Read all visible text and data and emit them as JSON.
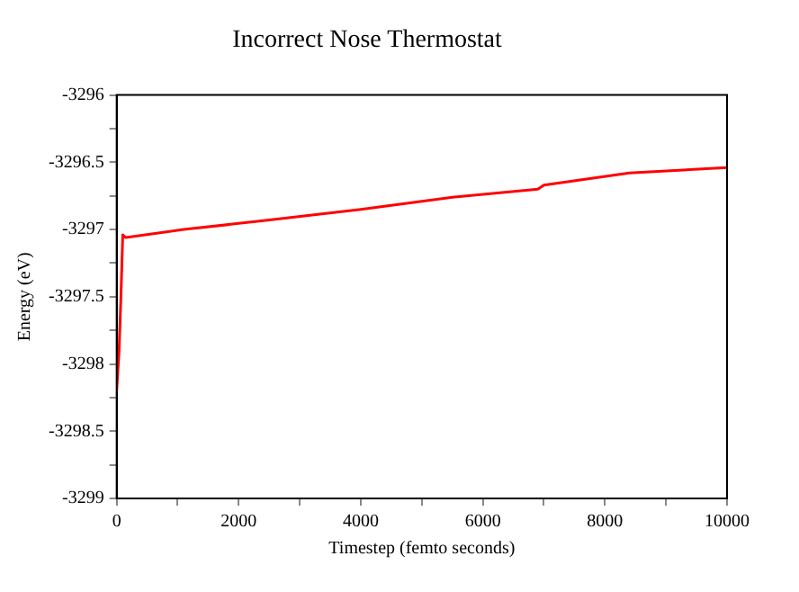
{
  "chart_data": {
    "type": "line",
    "title": "Incorrect Nose Thermostat",
    "xlabel": "Timestep (femto seconds)",
    "ylabel": "Energy (eV)",
    "x": [
      0,
      40,
      70,
      100,
      150,
      1100,
      2500,
      4000,
      5500,
      6900,
      7000,
      8400,
      10000
    ],
    "series": [
      {
        "color": "#ff0000",
        "values": [
          -3298.2,
          -3297.9,
          -3297.5,
          -3297.04,
          -3297.06,
          -3297.0,
          -3296.93,
          -3296.85,
          -3296.76,
          -3296.7,
          -3296.67,
          -3296.58,
          -3296.54
        ]
      }
    ],
    "xlim": [
      0,
      10000
    ],
    "xticks": [
      0,
      {
        "value": 1000,
        "label": null
      },
      2000,
      {
        "value": 3000,
        "label": null
      },
      4000,
      {
        "value": 5000,
        "label": null
      },
      6000,
      {
        "value": 7000,
        "label": null
      },
      8000,
      {
        "value": 9000,
        "label": null
      },
      10000
    ],
    "ylim": [
      -3299,
      -3296
    ],
    "yticks": [
      -3299,
      {
        "value": -3298.75,
        "label": null
      },
      -3298.5,
      {
        "value": -3298.25,
        "label": null
      },
      -3298,
      {
        "value": -3297.75,
        "label": null
      },
      -3297.5,
      {
        "value": -3297.25,
        "label": null
      },
      -3297,
      {
        "value": -3296.75,
        "label": null
      },
      -3296.5,
      {
        "value": -3296.25,
        "label": null
      },
      -3296
    ],
    "grid": false,
    "legend": false,
    "marker": "none",
    "line_style": "solid"
  }
}
